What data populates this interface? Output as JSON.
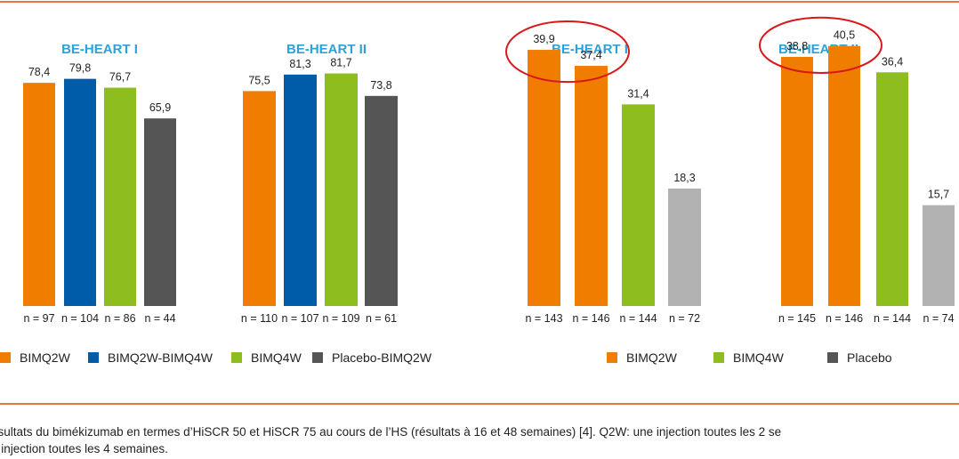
{
  "colors": {
    "BIMQ2W": "#f07d00",
    "BIMQ2W-BIMQ4W": "#005ca9",
    "BIMQ4W": "#8dbd1f",
    "Placebo-BIMQ2W": "#555555",
    "Placebo": "#b2b2b2",
    "title": "#2da1d8",
    "highlight": "#d7191c"
  },
  "chart_data": [
    {
      "type": "bar",
      "title": "BE-HEART I",
      "categories": [
        "n = 97",
        "n = 104",
        "n = 86",
        "n = 44"
      ],
      "series": [
        {
          "values": [
            78.4,
            79.8,
            76.7,
            65.9
          ]
        }
      ],
      "data_labels": [
        "78,4",
        "79,8",
        "76,7",
        "65,9"
      ],
      "bar_groups": [
        "BIMQ2W",
        "BIMQ2W-BIMQ4W",
        "BIMQ4W",
        "Placebo-BIMQ2W"
      ],
      "ylim": [
        0,
        100
      ],
      "highlighted": []
    },
    {
      "type": "bar",
      "title": "BE-HEART II",
      "categories": [
        "n = 110",
        "n = 107",
        "n = 109",
        "n = 61"
      ],
      "series": [
        {
          "values": [
            75.5,
            81.3,
            81.7,
            73.8
          ]
        }
      ],
      "data_labels": [
        "75,5",
        "81,3",
        "81,7",
        "73,8"
      ],
      "bar_groups": [
        "BIMQ2W",
        "BIMQ2W-BIMQ4W",
        "BIMQ4W",
        "Placebo-BIMQ2W"
      ],
      "ylim": [
        0,
        100
      ],
      "highlighted": []
    },
    {
      "type": "bar",
      "title": "BE-HEART I",
      "categories": [
        "n = 143",
        "n = 146",
        "n = 144",
        "n = 72"
      ],
      "series": [
        {
          "values": [
            39.9,
            37.4,
            31.4,
            18.3
          ]
        }
      ],
      "data_labels": [
        "39,9",
        "37,4",
        "31,4",
        "18,3"
      ],
      "bar_groups": [
        "BIMQ2W",
        "BIMQ2W",
        "BIMQ4W",
        "Placebo"
      ],
      "ylim": [
        0,
        46
      ],
      "highlighted": [
        0,
        1
      ]
    },
    {
      "type": "bar",
      "title": "BE-HEART II",
      "categories": [
        "n = 145",
        "n = 146",
        "n = 144",
        "n = 74"
      ],
      "series": [
        {
          "values": [
            38.8,
            40.5,
            36.4,
            15.7
          ]
        }
      ],
      "data_labels": [
        "38,8",
        "40,5",
        "36,4",
        "15,7"
      ],
      "bar_groups": [
        "BIMQ2W",
        "BIMQ2W",
        "BIMQ4W",
        "Placebo"
      ],
      "ylim": [
        0,
        46
      ],
      "highlighted": [
        0,
        1
      ]
    }
  ],
  "legend_left": [
    {
      "label": "BIMQ2W",
      "color": "#f07d00"
    },
    {
      "label": "BIMQ2W-BIMQ4W",
      "color": "#005ca9"
    },
    {
      "label": "BIMQ4W",
      "color": "#8dbd1f"
    },
    {
      "label": "Placebo-BIMQ2W",
      "color": "#555555"
    }
  ],
  "legend_right": [
    {
      "label": "BIMQ2W",
      "color": "#f07d00"
    },
    {
      "label": "BIMQ4W",
      "color": "#8dbd1f"
    },
    {
      "label": "Placebo",
      "color": "#555555"
    }
  ],
  "caption": {
    "line1": "ésultats du bimékizumab en termes d’HiSCR 50 et HiSCR 75 au cours de l’HS (résultats à 16 et 48 semaines) [4]. Q2W: une injection toutes les 2 se",
    "line2": "e injection toutes les 4 semaines."
  }
}
